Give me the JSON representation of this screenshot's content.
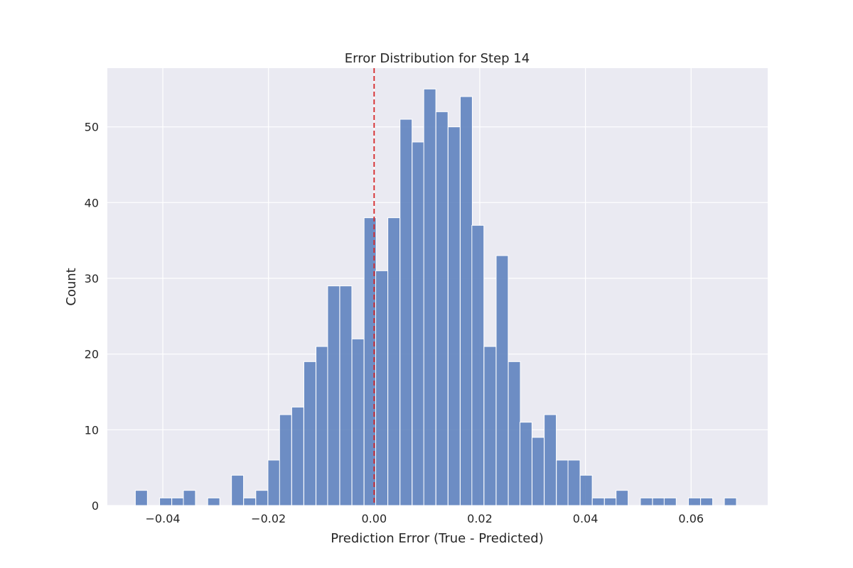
{
  "chart_data": {
    "type": "bar",
    "title": "Error Distribution for Step 14",
    "xlabel": "Prediction Error (True - Predicted)",
    "ylabel": "Count",
    "xlim": [
      -0.0505,
      0.0745
    ],
    "ylim": [
      0,
      57.75
    ],
    "xticks": [
      -0.04,
      -0.02,
      0.0,
      0.02,
      0.04,
      0.06
    ],
    "xtick_labels": [
      "−0.04",
      "−0.02",
      "0.00",
      "0.02",
      "0.04",
      "0.06"
    ],
    "yticks": [
      0,
      10,
      20,
      30,
      40,
      50
    ],
    "ytick_labels": [
      "0",
      "10",
      "20",
      "30",
      "40",
      "50"
    ],
    "grid": true,
    "reference_line": {
      "x": 0.0,
      "color": "#d62728",
      "style": "dashed"
    },
    "bar_color": "#5b7fbd",
    "bin_width": 0.00228,
    "bins": [
      {
        "x0": -0.0452,
        "count": 2
      },
      {
        "x0": -0.0429,
        "count": 0
      },
      {
        "x0": -0.0406,
        "count": 1
      },
      {
        "x0": -0.0383,
        "count": 1
      },
      {
        "x0": -0.0361,
        "count": 2
      },
      {
        "x0": -0.0338,
        "count": 0
      },
      {
        "x0": -0.0315,
        "count": 1
      },
      {
        "x0": -0.0292,
        "count": 0
      },
      {
        "x0": -0.027,
        "count": 4
      },
      {
        "x0": -0.0247,
        "count": 1
      },
      {
        "x0": -0.0224,
        "count": 2
      },
      {
        "x0": -0.0201,
        "count": 6
      },
      {
        "x0": -0.0179,
        "count": 12
      },
      {
        "x0": -0.0156,
        "count": 13
      },
      {
        "x0": -0.0133,
        "count": 19
      },
      {
        "x0": -0.011,
        "count": 21
      },
      {
        "x0": -0.0088,
        "count": 29
      },
      {
        "x0": -0.0065,
        "count": 29
      },
      {
        "x0": -0.0042,
        "count": 22
      },
      {
        "x0": -0.0019,
        "count": 38
      },
      {
        "x0": 0.0003,
        "count": 31
      },
      {
        "x0": 0.0026,
        "count": 38
      },
      {
        "x0": 0.0049,
        "count": 51
      },
      {
        "x0": 0.0072,
        "count": 48
      },
      {
        "x0": 0.0094,
        "count": 55
      },
      {
        "x0": 0.0117,
        "count": 52
      },
      {
        "x0": 0.014,
        "count": 50
      },
      {
        "x0": 0.0163,
        "count": 54
      },
      {
        "x0": 0.0185,
        "count": 37
      },
      {
        "x0": 0.0208,
        "count": 21
      },
      {
        "x0": 0.0231,
        "count": 33
      },
      {
        "x0": 0.0254,
        "count": 19
      },
      {
        "x0": 0.0276,
        "count": 11
      },
      {
        "x0": 0.0299,
        "count": 9
      },
      {
        "x0": 0.0322,
        "count": 12
      },
      {
        "x0": 0.0345,
        "count": 6
      },
      {
        "x0": 0.0367,
        "count": 6
      },
      {
        "x0": 0.039,
        "count": 4
      },
      {
        "x0": 0.0413,
        "count": 1
      },
      {
        "x0": 0.0436,
        "count": 1
      },
      {
        "x0": 0.0458,
        "count": 2
      },
      {
        "x0": 0.0481,
        "count": 0
      },
      {
        "x0": 0.0504,
        "count": 1
      },
      {
        "x0": 0.0527,
        "count": 1
      },
      {
        "x0": 0.0549,
        "count": 1
      },
      {
        "x0": 0.0572,
        "count": 0
      },
      {
        "x0": 0.0595,
        "count": 1
      },
      {
        "x0": 0.0618,
        "count": 1
      },
      {
        "x0": 0.064,
        "count": 0
      },
      {
        "x0": 0.0663,
        "count": 1
      }
    ]
  }
}
